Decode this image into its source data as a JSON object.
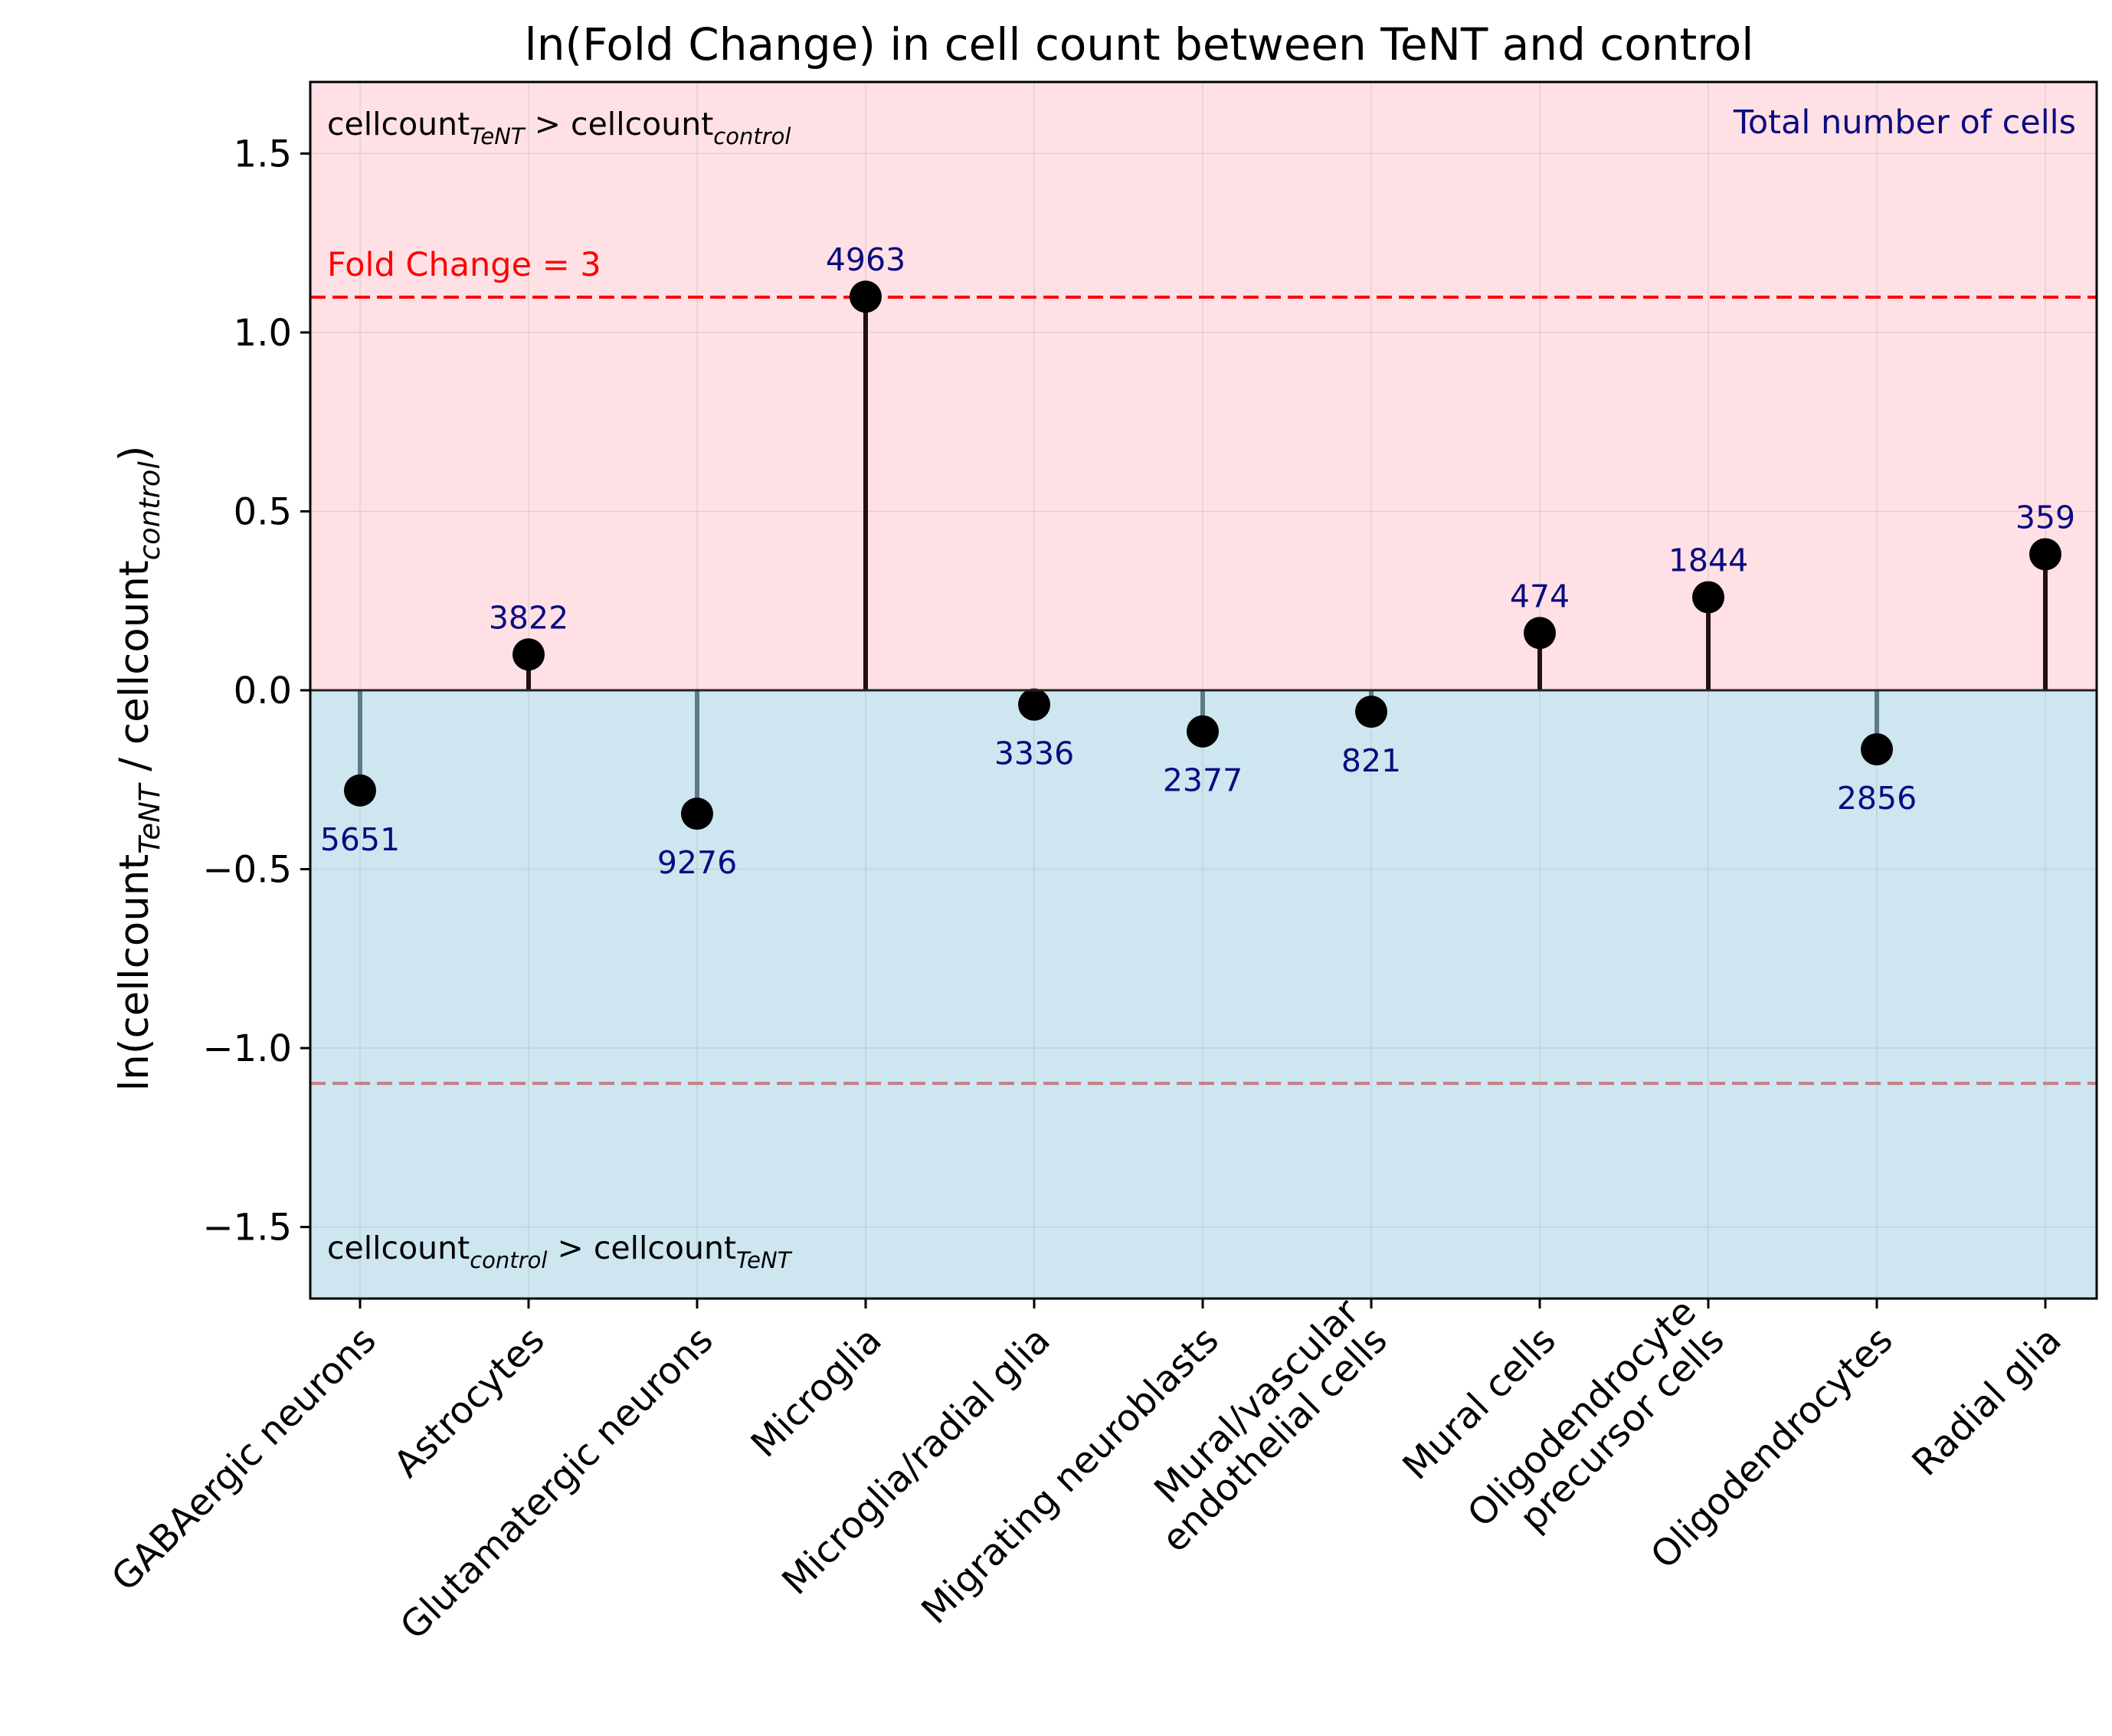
{
  "chart_data": {
    "type": "lollipop",
    "title": "ln(Fold Change) in cell count between TeNT and control",
    "ylabel": {
      "prefix": "ln(cellcount",
      "sub1": "TeNT",
      "mid": " / cellcount",
      "sub2": "control",
      "suffix": ")"
    },
    "xlabel": "",
    "ylim": [
      -1.7,
      1.7
    ],
    "yticks": [
      1.5,
      1.0,
      0.5,
      0.0,
      -0.5,
      -1.0,
      -1.5
    ],
    "ytick_labels": [
      "1.5",
      "1.0",
      "0.5",
      "0.0",
      "−0.5",
      "−1.0",
      "−1.5"
    ],
    "grid": true,
    "categories": [
      [
        "GABAergic neurons"
      ],
      [
        "Astrocytes"
      ],
      [
        "Glutamatergic neurons"
      ],
      [
        "Microglia"
      ],
      [
        "Microglia/radial glia"
      ],
      [
        "Migrating neuroblasts"
      ],
      [
        "Mural/vascular",
        "endothelial cells"
      ],
      [
        "Mural cells"
      ],
      [
        "Oligodendrocyte",
        "precursor cells"
      ],
      [
        "Oligodendrocytes"
      ],
      [
        "Radial glia"
      ]
    ],
    "values": [
      -0.28,
      0.1,
      -0.345,
      1.1,
      -0.04,
      -0.115,
      -0.06,
      0.16,
      0.26,
      -0.165,
      0.38
    ],
    "total_cells": [
      "5651",
      "3822",
      "9276",
      "4963",
      "3336",
      "2377",
      "821",
      "474",
      "1844",
      "2856",
      "359"
    ],
    "threshold": {
      "value": 1.0986,
      "label": "Fold Change = 3",
      "color": "#ff0000"
    },
    "threshold_neg": {
      "value": -1.0986,
      "color": "#c97b84"
    },
    "region_up": {
      "color": "#ffe1e5",
      "label_main": "cellcount",
      "label_sub1": "TeNT",
      "label_gt": " > cellcount",
      "label_sub2": "control"
    },
    "region_down": {
      "color": "#cde6f0",
      "label_main": "cellcount",
      "label_sub1": "control",
      "label_gt": " > cellcount",
      "label_sub2": "TeNT"
    },
    "annotation_note": "Total number of cells",
    "colors": {
      "pos_stem": "#221010",
      "neg_stem": "#5f7a87",
      "marker": "#000000",
      "count_label": "#0b0b80"
    }
  }
}
